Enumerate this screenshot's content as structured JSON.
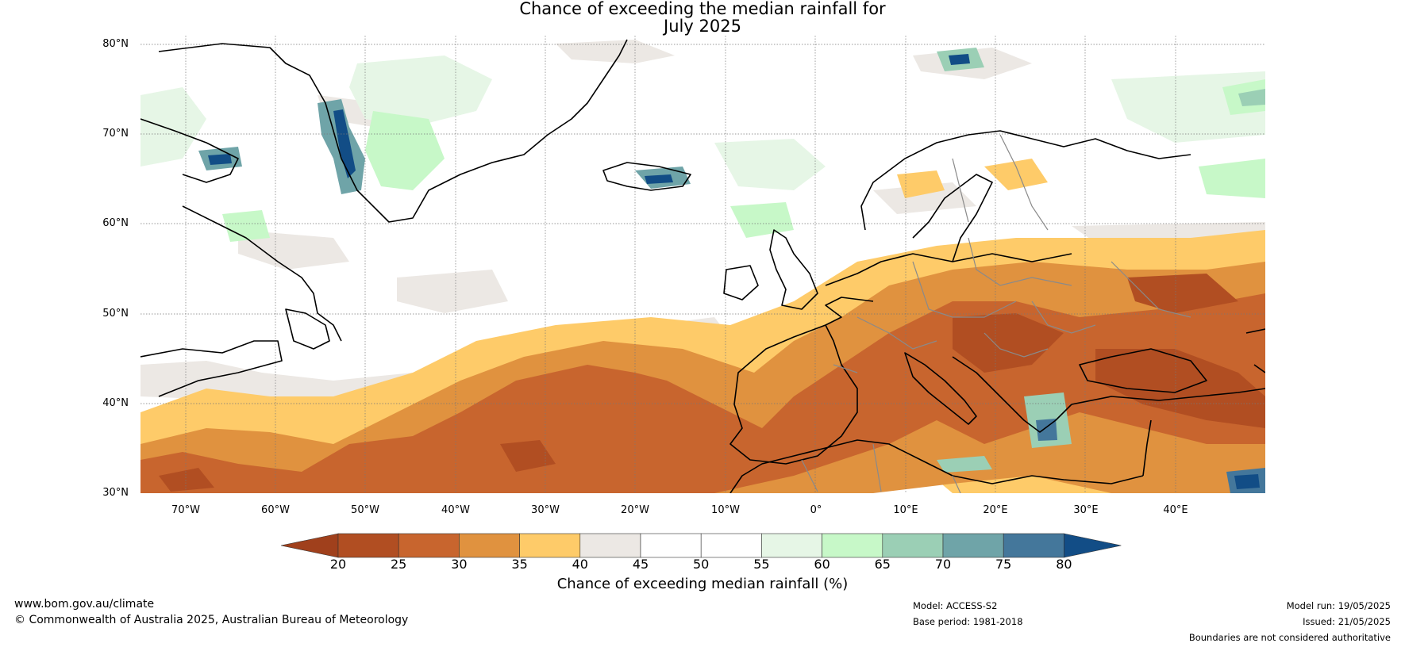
{
  "title": {
    "line1": "Chance of exceeding the median rainfall for",
    "line2": "July 2025"
  },
  "map": {
    "lat_labels": [
      "80°N",
      "70°N",
      "60°N",
      "50°N",
      "40°N",
      "30°N"
    ],
    "lon_labels": [
      "70°W",
      "60°W",
      "50°W",
      "40°W",
      "30°W",
      "20°W",
      "10°W",
      "0°",
      "10°E",
      "20°E",
      "30°E",
      "40°E"
    ],
    "extent": {
      "lon_min": -75,
      "lon_max": 50,
      "lat_min": 30,
      "lat_max": 81
    }
  },
  "colorbar": {
    "title": "Chance of exceeding median rainfall (%)",
    "ticks": [
      "20",
      "25",
      "30",
      "35",
      "40",
      "45",
      "50",
      "55",
      "60",
      "65",
      "70",
      "75",
      "80"
    ],
    "colors": [
      "#a0401c",
      "#b14e22",
      "#c8652e",
      "#e0923f",
      "#fecb69",
      "#ece8e4",
      "#ffffff",
      "#ffffff",
      "#e6f6e6",
      "#c7f8c8",
      "#9bcfb5",
      "#6fa4a8",
      "#44779b",
      "#124d86"
    ]
  },
  "footer": {
    "website": "www.bom.gov.au/climate",
    "copyright": "© Commonwealth of Australia 2025, Australian Bureau of Meteorology",
    "model": "Model: ACCESS-S2",
    "base_period": "Base period: 1981-2018",
    "model_run": "Model run: 19/05/2025",
    "issued": "Issued: 21/05/2025",
    "disclaimer": "Boundaries are not considered authoritative"
  }
}
